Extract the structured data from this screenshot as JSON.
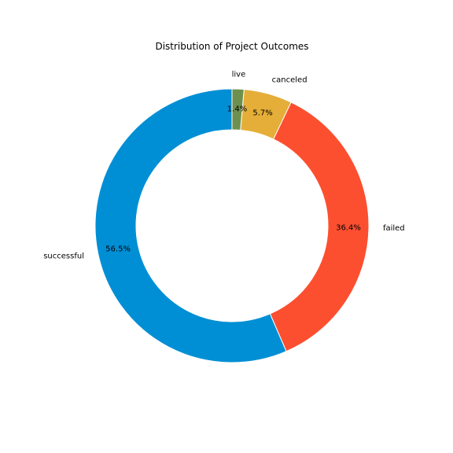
{
  "chart_data": {
    "type": "pie",
    "variant": "donut",
    "title": "Distribution of Project Outcomes",
    "start_angle_deg": 90,
    "direction": "counterclockwise",
    "slices": [
      {
        "label": "successful",
        "value": 56.5,
        "pct_label": "56.5%",
        "color": "#008fd5"
      },
      {
        "label": "failed",
        "value": 36.4,
        "pct_label": "36.4%",
        "color": "#fc4f30"
      },
      {
        "label": "canceled",
        "value": 5.7,
        "pct_label": "5.7%",
        "color": "#e5ae38"
      },
      {
        "label": "live",
        "value": 1.4,
        "pct_label": "1.4%",
        "color": "#6d904f"
      }
    ]
  }
}
